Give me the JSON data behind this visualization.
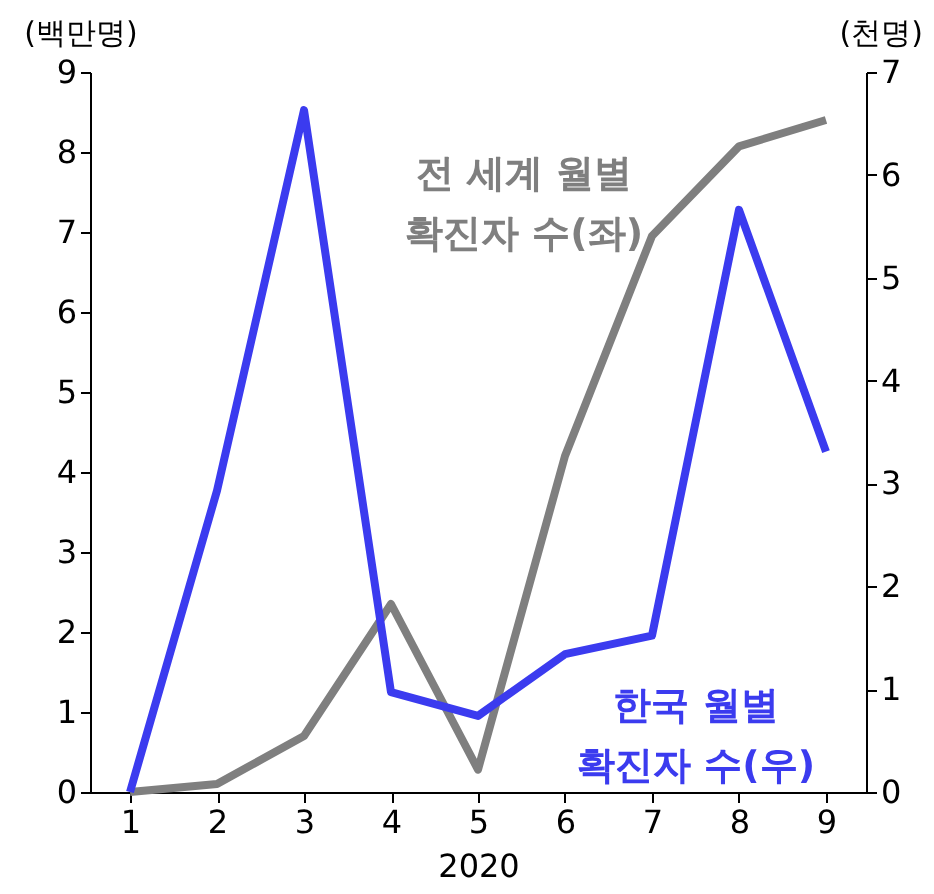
{
  "chart_data": {
    "type": "line",
    "xlabel": "2020",
    "ylabel": "(백만명)",
    "y2label": "(천명)",
    "categories": [
      "1",
      "2",
      "3",
      "4",
      "5",
      "6",
      "7",
      "8",
      "9"
    ],
    "series": [
      {
        "name": "전 세계 월별\n확진자 수(좌)",
        "color": "#7f7f7f",
        "values": [
          0,
          0.1,
          0.7,
          2.35,
          0.28,
          4.2,
          6.95,
          8.07,
          8.4
        ]
      },
      {
        "name": "한국 월별\n확진자 수(우)",
        "color": "#3b3bef",
        "axis": "y2",
        "values": [
          0,
          2.93,
          6.63,
          0.97,
          0.74,
          1.34,
          1.52,
          5.66,
          3.31
        ]
      }
    ],
    "ylim": [
      0,
      9
    ],
    "yticks": [
      0,
      1,
      2,
      3,
      4,
      5,
      6,
      7,
      8,
      9
    ],
    "y2lim": [
      0,
      7
    ],
    "y2ticks": [
      0,
      1,
      2,
      3,
      4,
      5,
      6,
      7
    ],
    "grid": false,
    "marker": "none",
    "line_style": "solid"
  }
}
